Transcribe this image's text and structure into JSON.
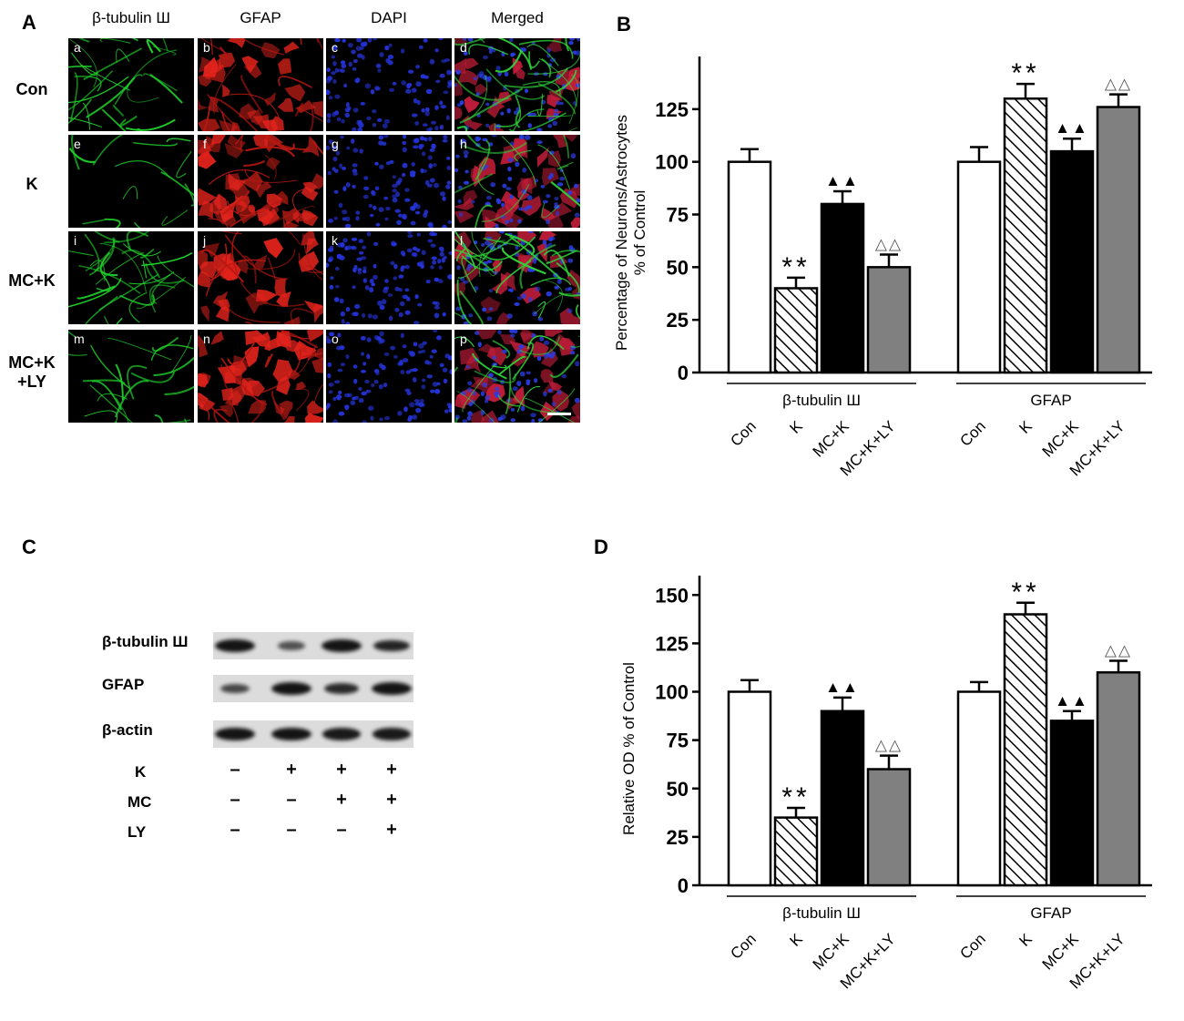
{
  "panel_letters": {
    "a": "A",
    "b": "B",
    "c": "C",
    "d": "D"
  },
  "micrographs": {
    "columns": [
      "β-tubulin Ш",
      "GFAP",
      "DAPI",
      "Merged"
    ],
    "rows": [
      "Con",
      "K",
      "MC+K",
      "MC+K\n+LY"
    ],
    "tile_letters": [
      "a",
      "b",
      "c",
      "d",
      "e",
      "f",
      "g",
      "h",
      "i",
      "j",
      "k",
      "l",
      "m",
      "n",
      "o",
      "p"
    ],
    "channel_colors": [
      "#1fd12a",
      "#e3231c",
      "#2433d6",
      "merged"
    ]
  },
  "western_blot": {
    "proteins": [
      "β-tubulin Ш",
      "GFAP",
      "β-actin"
    ],
    "band_intensity": [
      [
        1.0,
        0.45,
        1.0,
        0.85
      ],
      [
        0.55,
        1.0,
        0.8,
        1.0
      ],
      [
        1.0,
        1.0,
        0.95,
        0.95
      ]
    ],
    "conditions": [
      {
        "name": "K",
        "signs": [
          "–",
          "+",
          "+",
          "+"
        ]
      },
      {
        "name": "MC",
        "signs": [
          "–",
          "–",
          "+",
          "+"
        ]
      },
      {
        "name": "LY",
        "signs": [
          "–",
          "–",
          "–",
          "+"
        ]
      }
    ]
  },
  "chart_data": [
    {
      "type": "bar",
      "ylabel": "Percentage of Neurons/Astrocytes\n% of Control",
      "ylim": [
        0,
        150
      ],
      "yticks": [
        "0",
        "25",
        "50",
        "75",
        "100",
        "125"
      ],
      "groups": [
        "β-tubulin Ш",
        "GFAP"
      ],
      "categories": [
        "Con",
        "K",
        "MC+K",
        "MC+K+LY"
      ],
      "series": [
        {
          "group": "β-tubulin Ш",
          "values": [
            100,
            40,
            80,
            50
          ],
          "errors": [
            6,
            5,
            6,
            6
          ],
          "marks": [
            "",
            "**",
            "▲▲",
            "△△"
          ]
        },
        {
          "group": "GFAP",
          "values": [
            100,
            130,
            105,
            126
          ],
          "errors": [
            7,
            7,
            6,
            6
          ],
          "marks": [
            "",
            "**",
            "▲▲",
            "△△"
          ]
        }
      ],
      "fills": [
        "white",
        "hatch",
        "#000000",
        "#808080"
      ]
    },
    {
      "type": "bar",
      "ylabel": "Relative OD % of Control",
      "ylim": [
        0,
        160
      ],
      "yticks": [
        "0",
        "25",
        "50",
        "75",
        "100",
        "125",
        "150"
      ],
      "groups": [
        "β-tubulin Ш",
        "GFAP"
      ],
      "categories": [
        "Con",
        "K",
        "MC+K",
        "MC+K+LY"
      ],
      "series": [
        {
          "group": "β-tubulin Ш",
          "values": [
            100,
            35,
            90,
            60
          ],
          "errors": [
            6,
            5,
            7,
            7
          ],
          "marks": [
            "",
            "**",
            "▲▲",
            "△△"
          ]
        },
        {
          "group": "GFAP",
          "values": [
            100,
            140,
            85,
            110
          ],
          "errors": [
            5,
            6,
            5,
            6
          ],
          "marks": [
            "",
            "**",
            "▲▲",
            "△△"
          ]
        }
      ],
      "fills": [
        "white",
        "hatch",
        "#000000",
        "#808080"
      ]
    }
  ]
}
